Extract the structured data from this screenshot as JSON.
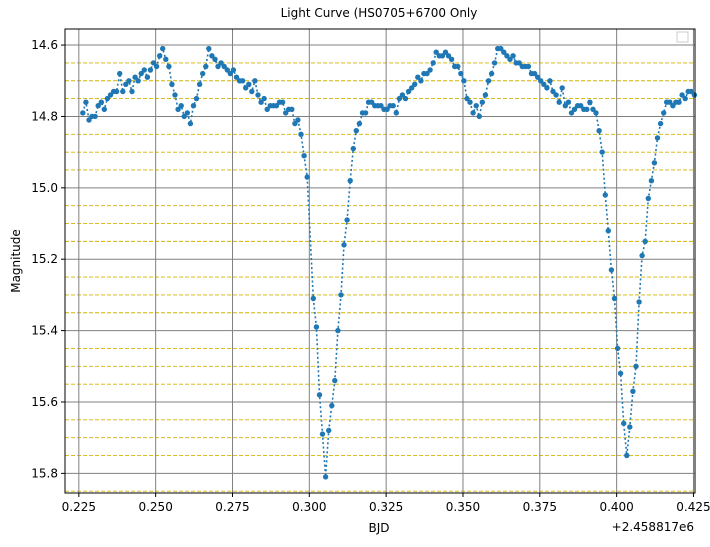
{
  "chart_data": {
    "type": "line",
    "title": "Light Curve (HS0705+6700 Only",
    "xlabel": "BJD",
    "ylabel": "Magnitude",
    "x_offset_label": "+2.458817e6",
    "xlim": [
      0.2205,
      0.4255
    ],
    "ylim": [
      15.855,
      14.555
    ],
    "y_inverted": true,
    "xticks": [
      "0.225",
      "0.250",
      "0.275",
      "0.300",
      "0.325",
      "0.350",
      "0.375",
      "0.400",
      "0.425"
    ],
    "xtick_values": [
      0.225,
      0.25,
      0.275,
      0.3,
      0.325,
      0.35,
      0.375,
      0.4,
      0.425
    ],
    "yticks": [
      "14.6",
      "14.8",
      "15.0",
      "15.2",
      "15.4",
      "15.6",
      "15.8"
    ],
    "ytick_values": [
      14.6,
      14.8,
      15.0,
      15.2,
      15.4,
      15.6,
      15.8
    ],
    "grid": true,
    "minor_ref_lines": [
      14.65,
      14.7,
      14.75,
      14.85,
      14.9,
      14.95,
      15.05,
      15.1,
      15.15,
      15.25,
      15.3,
      15.35,
      15.45,
      15.5,
      15.55,
      15.65,
      15.7,
      15.75,
      15.85
    ],
    "legend": "top-right",
    "colors": {
      "series": "#1f77b4",
      "grid": "#808080",
      "ref_line": "#d4b300"
    },
    "series": [
      {
        "points": [
          [
            0.2263,
            14.79
          ],
          [
            0.2273,
            14.76
          ],
          [
            0.2283,
            14.81
          ],
          [
            0.2293,
            14.8
          ],
          [
            0.2303,
            14.8
          ],
          [
            0.2313,
            14.77
          ],
          [
            0.2323,
            14.76
          ],
          [
            0.2333,
            14.78
          ],
          [
            0.2343,
            14.75
          ],
          [
            0.2353,
            14.74
          ],
          [
            0.2363,
            14.73
          ],
          [
            0.2373,
            14.73
          ],
          [
            0.2383,
            14.68
          ],
          [
            0.2393,
            14.73
          ],
          [
            0.2403,
            14.71
          ],
          [
            0.2413,
            14.7
          ],
          [
            0.2423,
            14.73
          ],
          [
            0.2433,
            14.69
          ],
          [
            0.2443,
            14.7
          ],
          [
            0.2453,
            14.68
          ],
          [
            0.2463,
            14.67
          ],
          [
            0.2473,
            14.69
          ],
          [
            0.2483,
            14.67
          ],
          [
            0.2493,
            14.65
          ],
          [
            0.2503,
            14.66
          ],
          [
            0.2513,
            14.63
          ],
          [
            0.2523,
            14.61
          ],
          [
            0.2533,
            14.64
          ],
          [
            0.2543,
            14.66
          ],
          [
            0.2553,
            14.71
          ],
          [
            0.2563,
            14.74
          ],
          [
            0.2573,
            14.78
          ],
          [
            0.2583,
            14.77
          ],
          [
            0.2593,
            14.8
          ],
          [
            0.2603,
            14.79
          ],
          [
            0.2613,
            14.82
          ],
          [
            0.2623,
            14.77
          ],
          [
            0.2633,
            14.75
          ],
          [
            0.2643,
            14.71
          ],
          [
            0.2653,
            14.68
          ],
          [
            0.2663,
            14.66
          ],
          [
            0.2673,
            14.61
          ],
          [
            0.2683,
            14.63
          ],
          [
            0.2693,
            14.64
          ],
          [
            0.2703,
            14.66
          ],
          [
            0.2713,
            14.65
          ],
          [
            0.2723,
            14.66
          ],
          [
            0.2733,
            14.67
          ],
          [
            0.2743,
            14.68
          ],
          [
            0.2753,
            14.67
          ],
          [
            0.2763,
            14.69
          ],
          [
            0.2773,
            14.7
          ],
          [
            0.2783,
            14.7
          ],
          [
            0.2793,
            14.72
          ],
          [
            0.2803,
            14.71
          ],
          [
            0.2813,
            14.73
          ],
          [
            0.2823,
            14.7
          ],
          [
            0.2833,
            14.74
          ],
          [
            0.2843,
            14.76
          ],
          [
            0.2853,
            14.75
          ],
          [
            0.2863,
            14.78
          ],
          [
            0.2873,
            14.77
          ],
          [
            0.2883,
            14.77
          ],
          [
            0.2893,
            14.77
          ],
          [
            0.2903,
            14.76
          ],
          [
            0.2913,
            14.76
          ],
          [
            0.2923,
            14.79
          ],
          [
            0.2933,
            14.78
          ],
          [
            0.2943,
            14.78
          ],
          [
            0.2953,
            14.82
          ],
          [
            0.2963,
            14.81
          ],
          [
            0.2973,
            14.85
          ],
          [
            0.2983,
            14.91
          ],
          [
            0.2993,
            14.97
          ],
          [
            0.3013,
            15.31
          ],
          [
            0.3023,
            15.39
          ],
          [
            0.3033,
            15.58
          ],
          [
            0.3043,
            15.69
          ],
          [
            0.3053,
            15.81
          ],
          [
            0.3063,
            15.68
          ],
          [
            0.3073,
            15.61
          ],
          [
            0.3083,
            15.54
          ],
          [
            0.3093,
            15.4
          ],
          [
            0.3103,
            15.3
          ],
          [
            0.3113,
            15.16
          ],
          [
            0.3123,
            15.09
          ],
          [
            0.3133,
            14.98
          ],
          [
            0.3143,
            14.89
          ],
          [
            0.3153,
            14.84
          ],
          [
            0.3163,
            14.82
          ],
          [
            0.3173,
            14.79
          ],
          [
            0.3183,
            14.79
          ],
          [
            0.3193,
            14.76
          ],
          [
            0.3203,
            14.76
          ],
          [
            0.3213,
            14.77
          ],
          [
            0.3223,
            14.77
          ],
          [
            0.3233,
            14.77
          ],
          [
            0.3243,
            14.78
          ],
          [
            0.3253,
            14.78
          ],
          [
            0.3263,
            14.77
          ],
          [
            0.3273,
            14.77
          ],
          [
            0.3283,
            14.79
          ],
          [
            0.3293,
            14.75
          ],
          [
            0.3303,
            14.74
          ],
          [
            0.3313,
            14.75
          ],
          [
            0.3323,
            14.73
          ],
          [
            0.3333,
            14.72
          ],
          [
            0.3343,
            14.71
          ],
          [
            0.3353,
            14.69
          ],
          [
            0.3363,
            14.7
          ],
          [
            0.3373,
            14.68
          ],
          [
            0.3383,
            14.68
          ],
          [
            0.3393,
            14.67
          ],
          [
            0.3403,
            14.65
          ],
          [
            0.3413,
            14.62
          ],
          [
            0.3423,
            14.63
          ],
          [
            0.3433,
            14.63
          ],
          [
            0.3443,
            14.62
          ],
          [
            0.3453,
            14.63
          ],
          [
            0.3463,
            14.64
          ],
          [
            0.3473,
            14.66
          ],
          [
            0.3483,
            14.66
          ],
          [
            0.3493,
            14.68
          ],
          [
            0.3503,
            14.7
          ],
          [
            0.3513,
            14.75
          ],
          [
            0.3523,
            14.76
          ],
          [
            0.3533,
            14.79
          ],
          [
            0.3543,
            14.77
          ],
          [
            0.3553,
            14.8
          ],
          [
            0.3563,
            14.76
          ],
          [
            0.3573,
            14.74
          ],
          [
            0.3583,
            14.7
          ],
          [
            0.3593,
            14.68
          ],
          [
            0.3603,
            14.65
          ],
          [
            0.3613,
            14.61
          ],
          [
            0.3623,
            14.61
          ],
          [
            0.3633,
            14.62
          ],
          [
            0.3643,
            14.63
          ],
          [
            0.3653,
            14.64
          ],
          [
            0.3663,
            14.63
          ],
          [
            0.3673,
            14.65
          ],
          [
            0.3683,
            14.65
          ],
          [
            0.3693,
            14.66
          ],
          [
            0.3703,
            14.66
          ],
          [
            0.3713,
            14.66
          ],
          [
            0.3723,
            14.68
          ],
          [
            0.3733,
            14.68
          ],
          [
            0.3743,
            14.69
          ],
          [
            0.3753,
            14.7
          ],
          [
            0.3763,
            14.71
          ],
          [
            0.3773,
            14.72
          ],
          [
            0.3783,
            14.7
          ],
          [
            0.3793,
            14.73
          ],
          [
            0.3803,
            14.74
          ],
          [
            0.3813,
            14.76
          ],
          [
            0.3823,
            14.72
          ],
          [
            0.3833,
            14.77
          ],
          [
            0.3843,
            14.76
          ],
          [
            0.3853,
            14.79
          ],
          [
            0.3863,
            14.78
          ],
          [
            0.3873,
            14.77
          ],
          [
            0.3883,
            14.77
          ],
          [
            0.3893,
            14.78
          ],
          [
            0.3903,
            14.78
          ],
          [
            0.3913,
            14.76
          ],
          [
            0.3923,
            14.78
          ],
          [
            0.3933,
            14.79
          ],
          [
            0.3943,
            14.84
          ],
          [
            0.3953,
            14.9
          ],
          [
            0.3963,
            15.02
          ],
          [
            0.3973,
            15.12
          ],
          [
            0.3983,
            15.23
          ],
          [
            0.3993,
            15.31
          ],
          [
            0.4003,
            15.45
          ],
          [
            0.4013,
            15.52
          ],
          [
            0.4023,
            15.66
          ],
          [
            0.4033,
            15.75
          ],
          [
            0.4043,
            15.67
          ],
          [
            0.4053,
            15.57
          ],
          [
            0.4063,
            15.5
          ],
          [
            0.4073,
            15.32
          ],
          [
            0.4083,
            15.19
          ],
          [
            0.4093,
            15.15
          ],
          [
            0.4103,
            15.03
          ],
          [
            0.4113,
            14.98
          ],
          [
            0.4123,
            14.93
          ],
          [
            0.4133,
            14.86
          ],
          [
            0.4143,
            14.82
          ],
          [
            0.4153,
            14.79
          ],
          [
            0.4163,
            14.76
          ],
          [
            0.4173,
            14.76
          ],
          [
            0.4183,
            14.77
          ],
          [
            0.4193,
            14.76
          ],
          [
            0.4203,
            14.76
          ],
          [
            0.4213,
            14.74
          ],
          [
            0.4223,
            14.75
          ],
          [
            0.4233,
            14.73
          ],
          [
            0.4243,
            14.73
          ],
          [
            0.4253,
            14.74
          ]
        ]
      }
    ]
  }
}
